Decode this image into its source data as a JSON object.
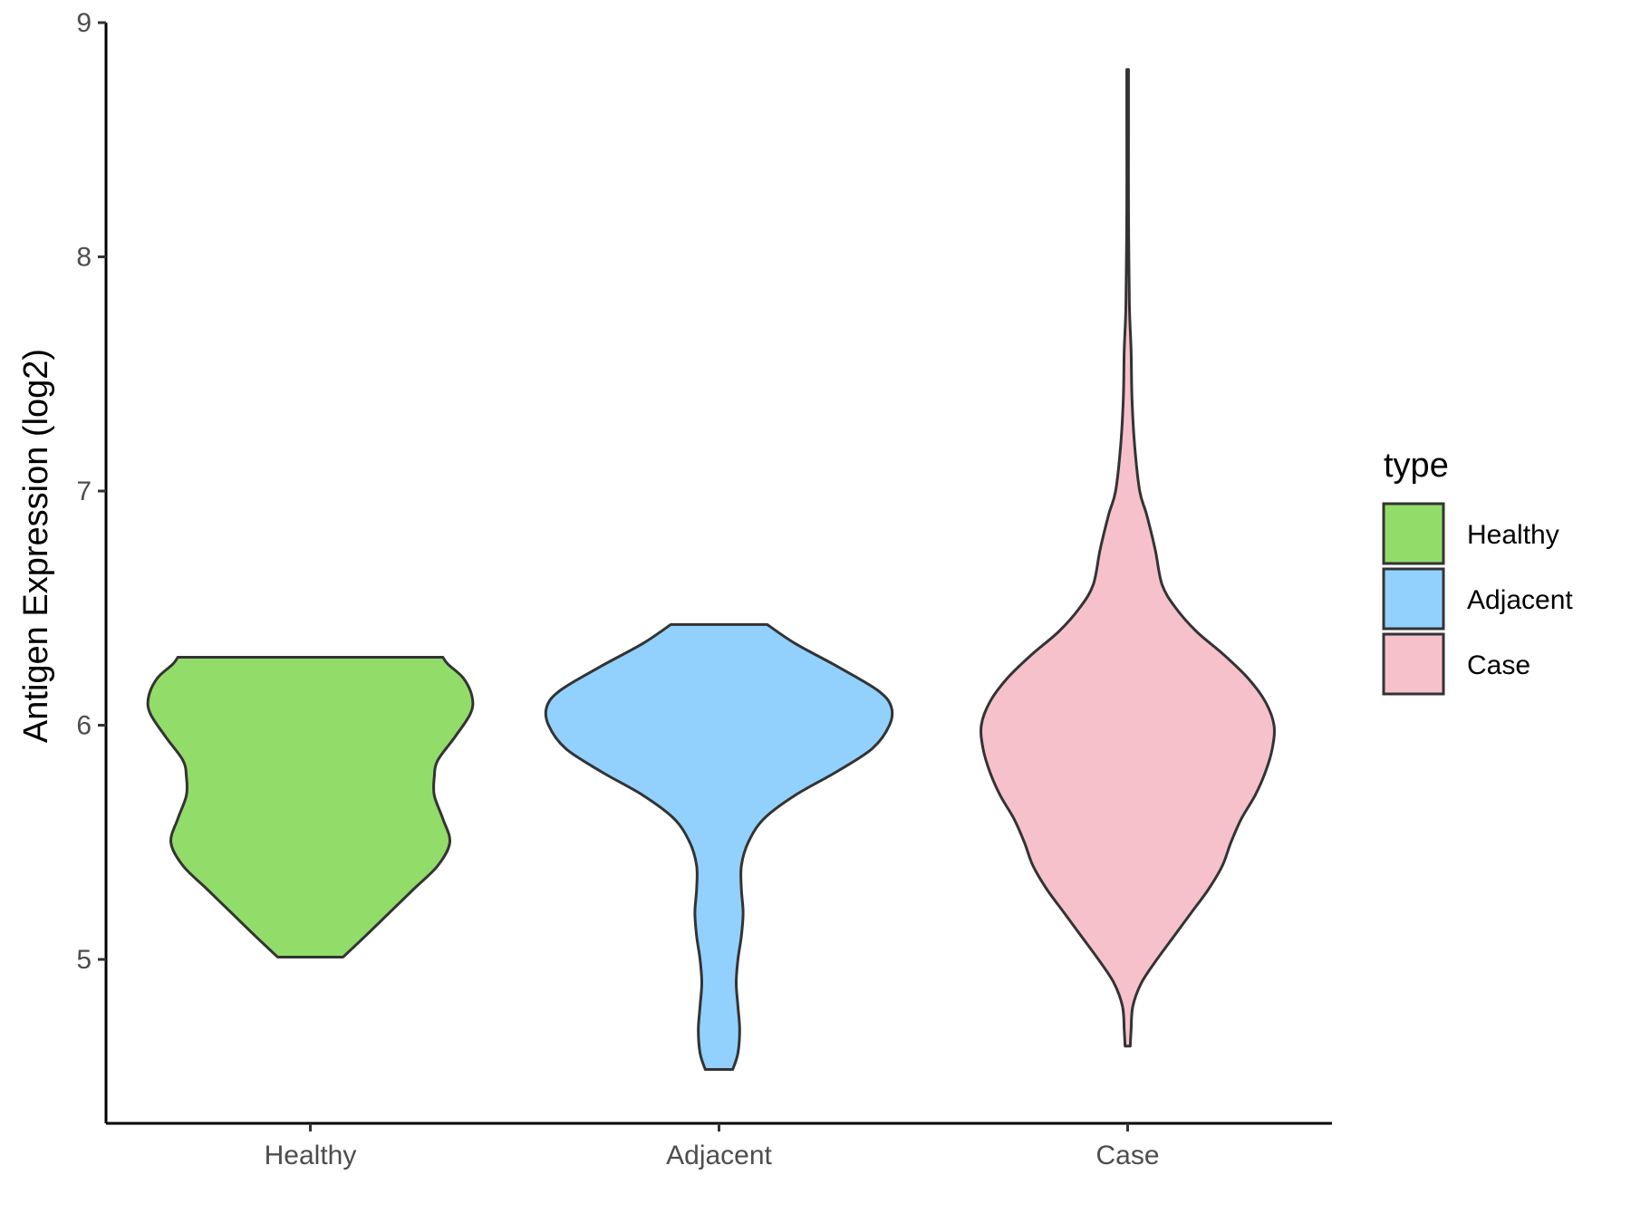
{
  "chart_data": {
    "type": "violin",
    "title": "",
    "xlabel": "",
    "ylabel": "Antigen Expression (log2)",
    "ylim": [
      4.3,
      9.0
    ],
    "yticks": [
      5,
      6,
      7,
      8,
      9
    ],
    "categories": [
      "Healthy",
      "Adjacent",
      "Case"
    ],
    "legend": {
      "title": "type",
      "position": "right",
      "entries": [
        "Healthy",
        "Adjacent",
        "Case"
      ]
    },
    "series": [
      {
        "category": "Healthy",
        "color": "#92dc6a",
        "min": 5.01,
        "max": 6.29,
        "density_profile": [
          [
            5.01,
            0.19
          ],
          [
            5.1,
            0.32
          ],
          [
            5.2,
            0.46
          ],
          [
            5.3,
            0.6
          ],
          [
            5.4,
            0.74
          ],
          [
            5.5,
            0.81
          ],
          [
            5.6,
            0.77
          ],
          [
            5.7,
            0.72
          ],
          [
            5.78,
            0.72
          ],
          [
            5.85,
            0.74
          ],
          [
            5.95,
            0.84
          ],
          [
            6.05,
            0.93
          ],
          [
            6.12,
            0.94
          ],
          [
            6.2,
            0.89
          ],
          [
            6.26,
            0.8
          ],
          [
            6.29,
            0.77
          ]
        ]
      },
      {
        "category": "Adjacent",
        "color": "#92d1fd",
        "min": 4.53,
        "max": 6.43,
        "density_profile": [
          [
            4.53,
            0.08
          ],
          [
            4.6,
            0.11
          ],
          [
            4.7,
            0.12
          ],
          [
            4.8,
            0.11
          ],
          [
            4.9,
            0.1
          ],
          [
            5.0,
            0.11
          ],
          [
            5.1,
            0.13
          ],
          [
            5.2,
            0.14
          ],
          [
            5.3,
            0.13
          ],
          [
            5.4,
            0.13
          ],
          [
            5.5,
            0.17
          ],
          [
            5.6,
            0.26
          ],
          [
            5.7,
            0.44
          ],
          [
            5.8,
            0.68
          ],
          [
            5.9,
            0.89
          ],
          [
            6.0,
            0.99
          ],
          [
            6.08,
            1.0
          ],
          [
            6.15,
            0.92
          ],
          [
            6.25,
            0.69
          ],
          [
            6.35,
            0.44
          ],
          [
            6.43,
            0.28
          ]
        ]
      },
      {
        "category": "Case",
        "color": "#f7c1cb",
        "min": 4.63,
        "max": 8.8,
        "density_profile": [
          [
            4.63,
            0.015
          ],
          [
            4.7,
            0.02
          ],
          [
            4.8,
            0.03
          ],
          [
            4.9,
            0.08
          ],
          [
            5.0,
            0.17
          ],
          [
            5.1,
            0.27
          ],
          [
            5.2,
            0.37
          ],
          [
            5.3,
            0.47
          ],
          [
            5.4,
            0.55
          ],
          [
            5.5,
            0.6
          ],
          [
            5.6,
            0.66
          ],
          [
            5.7,
            0.74
          ],
          [
            5.8,
            0.8
          ],
          [
            5.9,
            0.84
          ],
          [
            6.0,
            0.85
          ],
          [
            6.1,
            0.8
          ],
          [
            6.2,
            0.7
          ],
          [
            6.3,
            0.56
          ],
          [
            6.4,
            0.4
          ],
          [
            6.5,
            0.28
          ],
          [
            6.6,
            0.2
          ],
          [
            6.75,
            0.16
          ],
          [
            6.9,
            0.11
          ],
          [
            7.0,
            0.07
          ],
          [
            7.2,
            0.04
          ],
          [
            7.4,
            0.025
          ],
          [
            7.6,
            0.02
          ],
          [
            7.8,
            0.01
          ],
          [
            8.2,
            0.005
          ],
          [
            8.6,
            0.005
          ],
          [
            8.8,
            0.005
          ]
        ]
      }
    ]
  }
}
